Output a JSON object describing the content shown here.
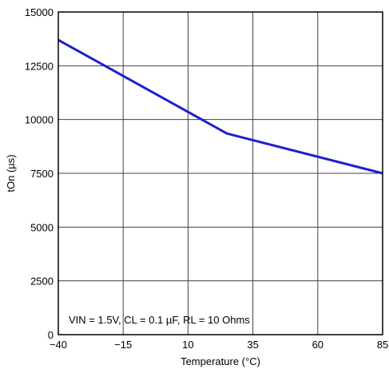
{
  "chart_data": {
    "type": "line",
    "xlabel": "Temperature (°C)",
    "ylabel": "tOn (µs)",
    "xlim": [
      -40,
      85
    ],
    "ylim": [
      0,
      15000
    ],
    "xticks": [
      -40,
      -15,
      10,
      35,
      60,
      85
    ],
    "xtick_labels": [
      "−40",
      "−15",
      "10",
      "35",
      "60",
      "85"
    ],
    "yticks": [
      0,
      2500,
      5000,
      7500,
      10000,
      12500,
      15000
    ],
    "ytick_labels": [
      "0",
      "2500",
      "5000",
      "7500",
      "10000",
      "12500",
      "15000"
    ],
    "grid": true,
    "annotation": "VIN = 1.5V, CL = 0.1 µF, RL = 10 Ohms",
    "series": [
      {
        "color": "#1f1fd0",
        "x": [
          -40,
          25,
          85
        ],
        "y": [
          13700,
          9350,
          7500
        ]
      }
    ]
  }
}
